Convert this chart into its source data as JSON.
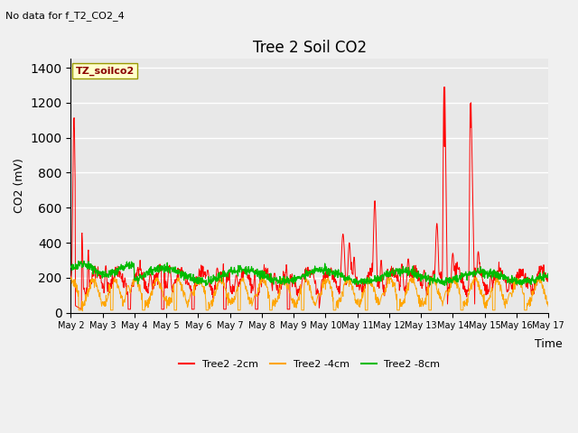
{
  "title": "Tree 2 Soil CO2",
  "subtitle": "No data for f_T2_CO2_4",
  "ylabel": "CO2 (mV)",
  "xlabel": "Time",
  "legend_box_label": "TZ_soilco2",
  "series_labels": [
    "Tree2 -2cm",
    "Tree2 -4cm",
    "Tree2 -8cm"
  ],
  "series_colors": [
    "#ff0000",
    "#ffa500",
    "#00bb00"
  ],
  "background_color": "#e8e8e8",
  "ylim": [
    0,
    1450
  ],
  "yticks": [
    0,
    200,
    400,
    600,
    800,
    1000,
    1200,
    1400
  ],
  "x_tick_labels": [
    "May 2",
    "May 3",
    "May 4",
    "May 5",
    "May 6",
    "May 7",
    "May 8",
    "May 9",
    "May 10",
    "May 11",
    "May 12",
    "May 13",
    "May 14",
    "May 15",
    "May 16",
    "May 17"
  ]
}
